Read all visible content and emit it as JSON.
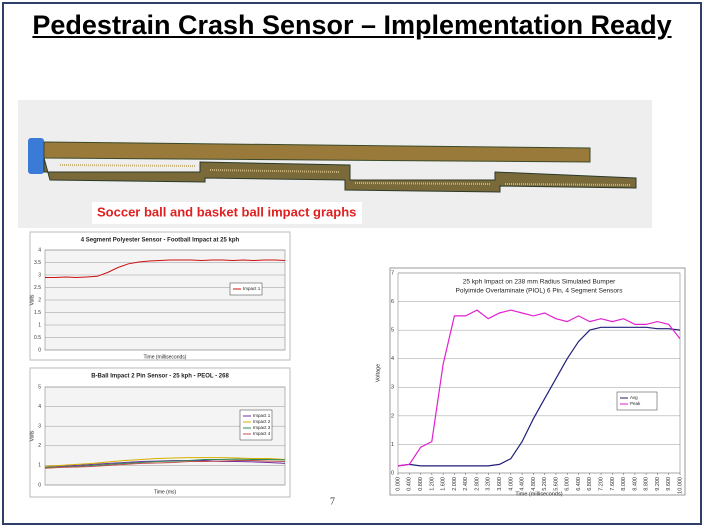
{
  "title": "Pedestrain Crash Sensor – Implementation Ready",
  "caption": "Soccer ball and basket ball impact graphs",
  "page_number": "7",
  "charts": [
    {
      "type": "line",
      "title": "4 Segment Polyester Sensor - Football Impact at 25 kph",
      "x_label": "Time (milliseconds)",
      "y_label": "Volts",
      "ylim": [
        0,
        4
      ],
      "yticks": [
        0,
        0.5,
        1,
        1.5,
        2,
        2.5,
        3,
        3.5,
        4
      ],
      "grid": true,
      "series": [
        {
          "name": "Impact 1",
          "color": "#cc1111",
          "values": [
            2.9,
            2.9,
            2.92,
            2.9,
            2.92,
            2.95,
            3.1,
            3.3,
            3.45,
            3.52,
            3.56,
            3.58,
            3.6,
            3.6,
            3.6,
            3.58,
            3.6,
            3.6,
            3.58,
            3.6,
            3.58,
            3.6,
            3.6,
            3.58
          ]
        }
      ]
    },
    {
      "type": "line",
      "title": "B-Ball Impact 2 Pin Sensor - 25 kph - PEOL - 268",
      "x_label": "Time (ms)",
      "y_label": "Volts",
      "ylim": [
        0,
        5
      ],
      "yticks": [
        0,
        1,
        2,
        3,
        4,
        5
      ],
      "grid": true,
      "series": [
        {
          "name": "Impact 1",
          "color": "#7030a0",
          "values": [
            0.9,
            0.95,
            1.0,
            1.05,
            1.1,
            1.15,
            1.2,
            1.22,
            1.25,
            1.25,
            1.25,
            1.2,
            1.2,
            1.18,
            1.15,
            1.1
          ]
        },
        {
          "name": "Impact 2",
          "color": "#d4b000",
          "values": [
            0.95,
            1.0,
            1.05,
            1.1,
            1.18,
            1.25,
            1.3,
            1.35,
            1.38,
            1.4,
            1.4,
            1.4,
            1.38,
            1.35,
            1.35,
            1.3
          ]
        },
        {
          "name": "Impact 3",
          "color": "#2e8b57",
          "values": [
            0.9,
            0.92,
            0.95,
            1.0,
            1.05,
            1.1,
            1.15,
            1.2,
            1.22,
            1.25,
            1.3,
            1.3,
            1.32,
            1.3,
            1.3,
            1.28
          ]
        },
        {
          "name": "Impact 4",
          "color": "#c0504d",
          "values": [
            0.85,
            0.9,
            0.92,
            0.95,
            1.0,
            1.05,
            1.1,
            1.12,
            1.15,
            1.2,
            1.2,
            1.22,
            1.25,
            1.25,
            1.22,
            1.2
          ]
        }
      ]
    },
    {
      "type": "line",
      "title": "25 kph Impact on 238 mm Radius Simulated Bumper",
      "subtitle": "Polyimide Overlaminate (PIOL) 6 Pin, 4 Segment Sensors",
      "x_label": "Time (milliseconds)",
      "y_label": "Voltage",
      "xlim": [
        0,
        10
      ],
      "xticks": [
        {
          "value": 0,
          "label": "0.000"
        },
        {
          "value": 0.4,
          "label": "0.400"
        },
        {
          "value": 0.8,
          "label": "0.800"
        },
        {
          "value": 1.2,
          "label": "1.200"
        },
        {
          "value": 1.6,
          "label": "1.600"
        },
        {
          "value": 2,
          "label": "2.000"
        },
        {
          "value": 2.4,
          "label": "2.400"
        },
        {
          "value": 2.8,
          "label": "2.800"
        },
        {
          "value": 3.2,
          "label": "3.200"
        },
        {
          "value": 3.6,
          "label": "3.600"
        },
        {
          "value": 4,
          "label": "4.000"
        },
        {
          "value": 4.4,
          "label": "4.400"
        },
        {
          "value": 4.8,
          "label": "4.800"
        },
        {
          "value": 5.2,
          "label": "5.200"
        },
        {
          "value": 5.6,
          "label": "5.600"
        },
        {
          "value": 6,
          "label": "6.000"
        },
        {
          "value": 6.4,
          "label": "6.400"
        },
        {
          "value": 6.8,
          "label": "6.800"
        },
        {
          "value": 7.2,
          "label": "7.200"
        },
        {
          "value": 7.6,
          "label": "7.600"
        },
        {
          "value": 8,
          "label": "8.000"
        },
        {
          "value": 8.4,
          "label": "8.400"
        },
        {
          "value": 8.8,
          "label": "8.800"
        },
        {
          "value": 9.2,
          "label": "9.200"
        },
        {
          "value": 9.6,
          "label": "9.600"
        },
        {
          "value": 10,
          "label": "10.000"
        }
      ],
      "ylim": [
        0,
        7
      ],
      "yticks": [
        0,
        1,
        2,
        3,
        4,
        5,
        6,
        7
      ],
      "grid": true,
      "x": [
        0,
        0.4,
        0.8,
        1.2,
        1.6,
        2,
        2.4,
        2.8,
        3.2,
        3.6,
        4,
        4.4,
        4.8,
        5.2,
        5.6,
        6,
        6.4,
        6.8,
        7.2,
        7.6,
        8,
        8.4,
        8.8,
        9.2,
        9.6,
        10
      ],
      "series": [
        {
          "name": "Avg",
          "color": "#1f1f7a",
          "values": [
            0.25,
            0.3,
            0.25,
            0.25,
            0.25,
            0.25,
            0.25,
            0.25,
            0.25,
            0.3,
            0.5,
            1.1,
            1.9,
            2.6,
            3.3,
            4.0,
            4.6,
            5.0,
            5.1,
            5.1,
            5.1,
            5.1,
            5.1,
            5.05,
            5.05,
            5.0
          ]
        },
        {
          "name": "Peak",
          "color": "#e020d0",
          "values": [
            0.25,
            0.3,
            0.9,
            1.1,
            3.8,
            5.5,
            5.5,
            5.7,
            5.4,
            5.6,
            5.7,
            5.6,
            5.5,
            5.6,
            5.4,
            5.3,
            5.5,
            5.3,
            5.4,
            5.3,
            5.4,
            5.2,
            5.2,
            5.3,
            5.2,
            4.7
          ]
        }
      ]
    }
  ]
}
